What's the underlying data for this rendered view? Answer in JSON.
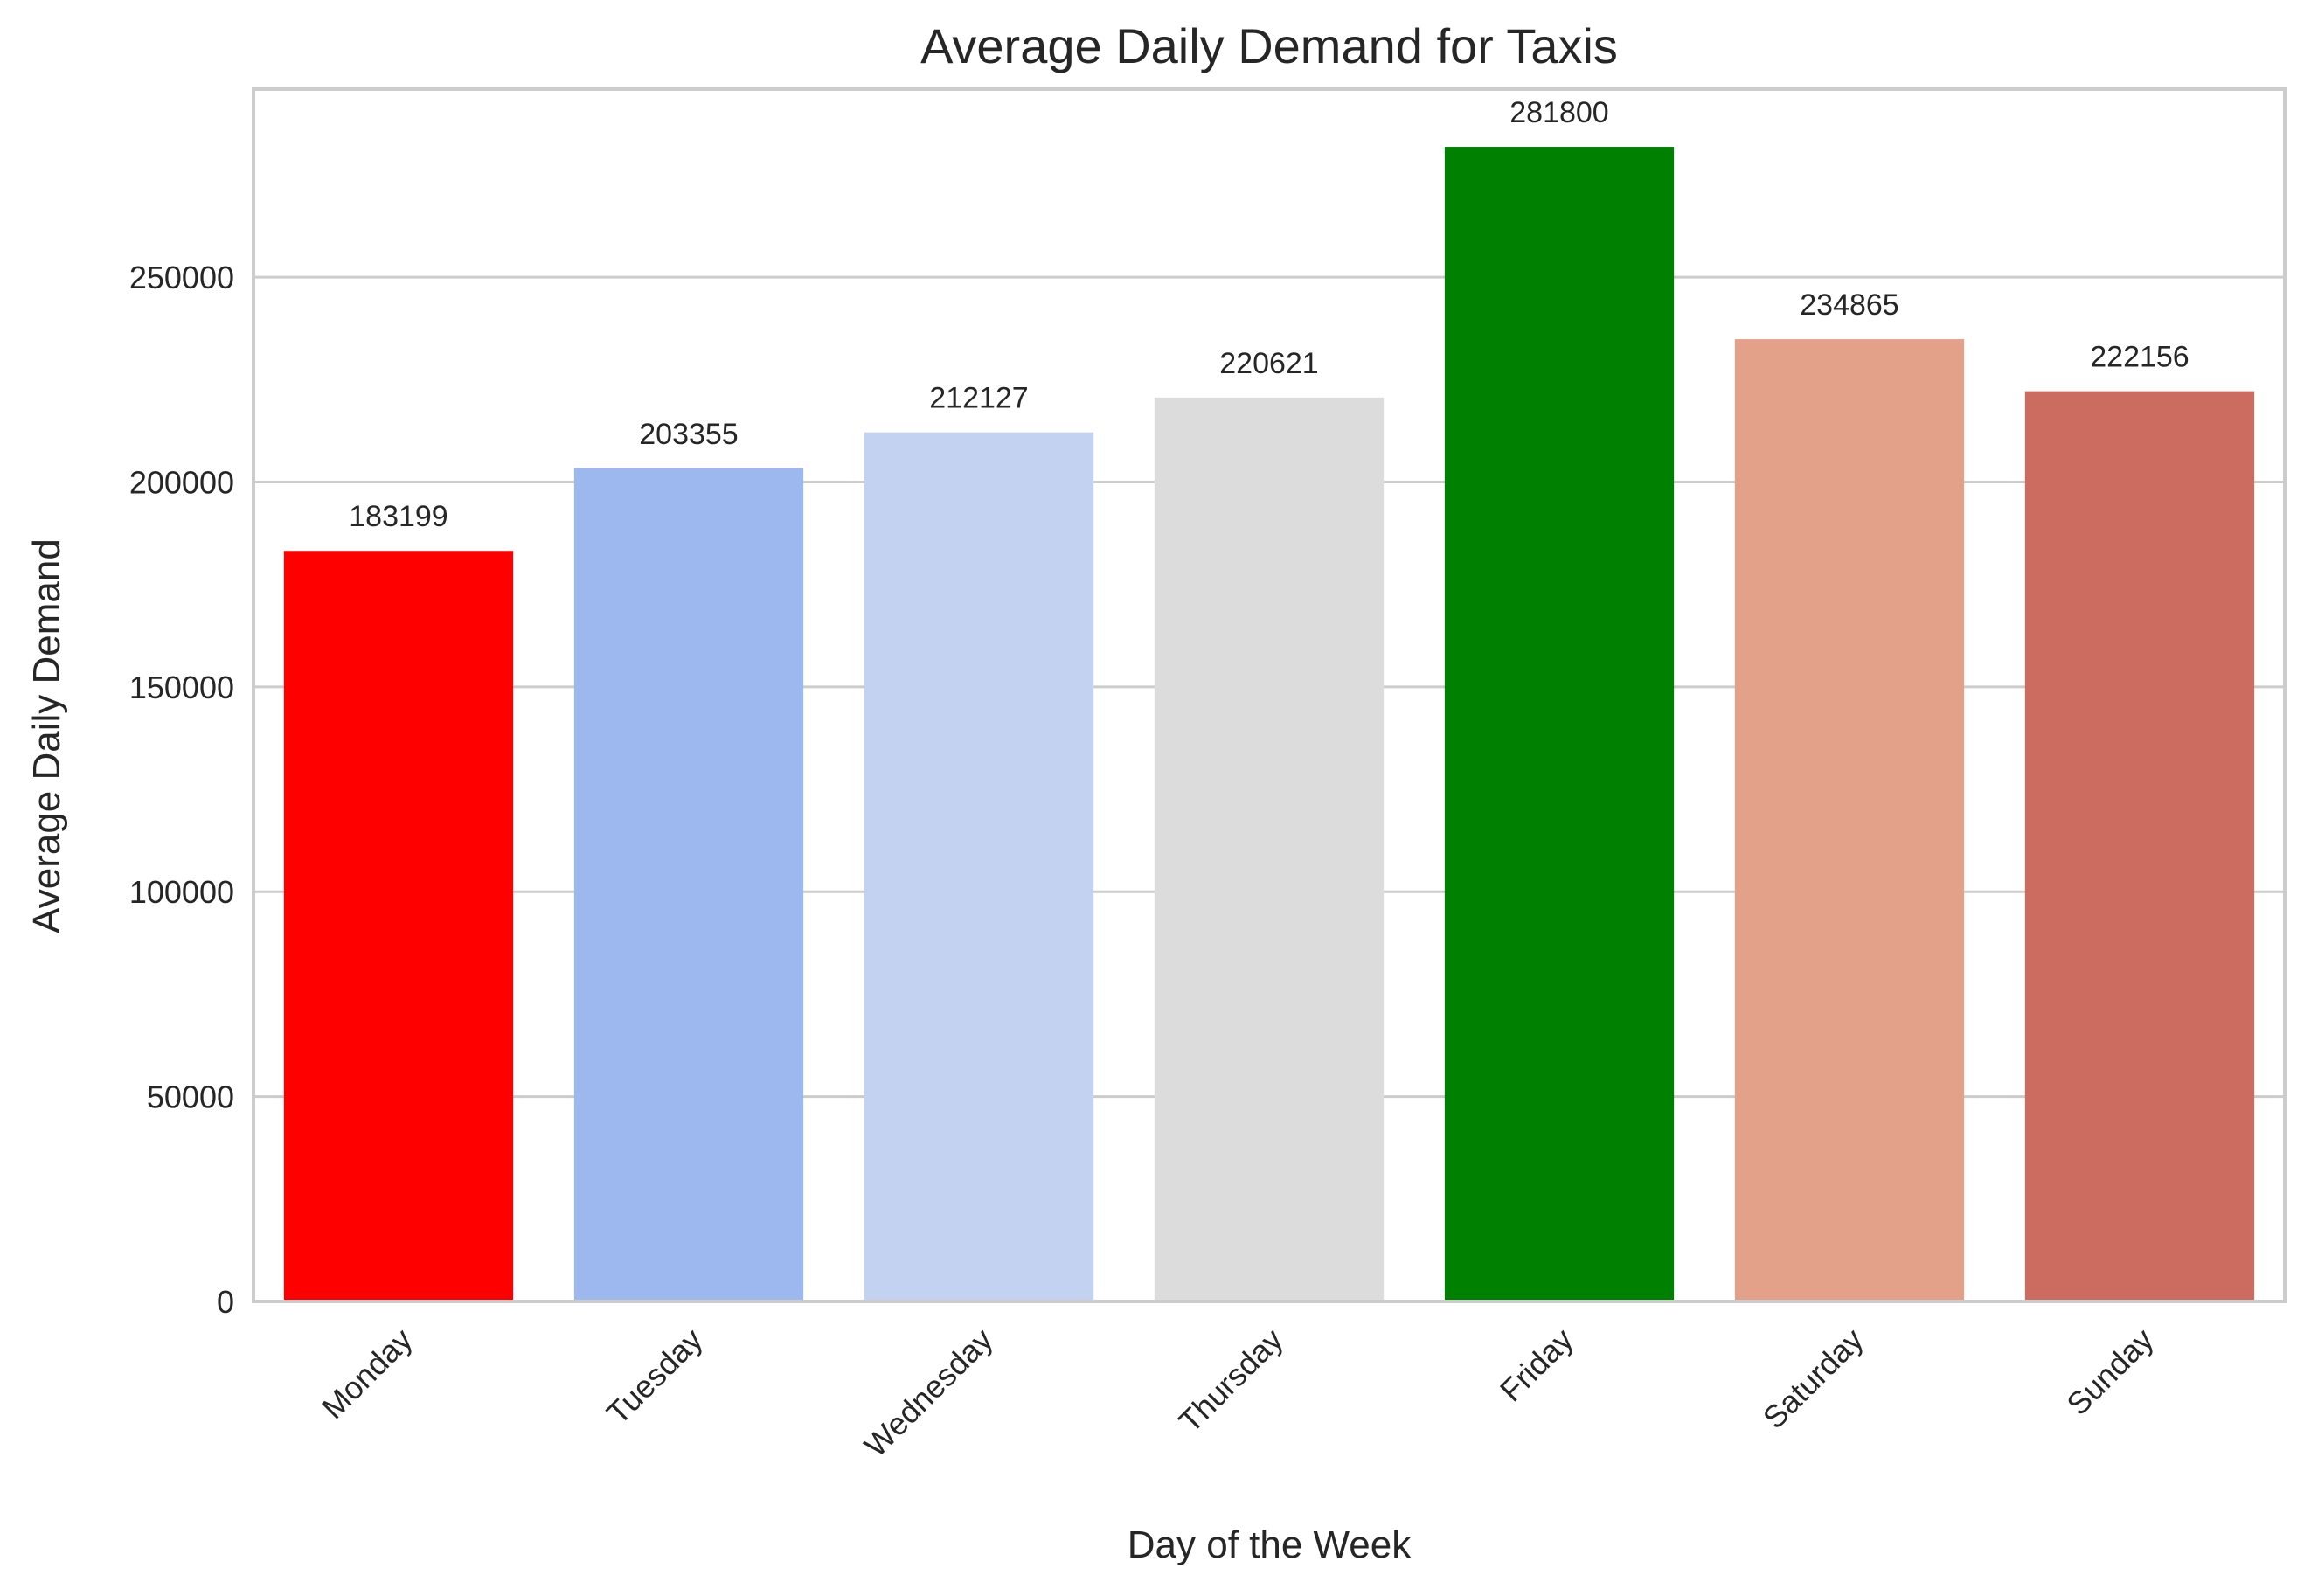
{
  "chart_data": {
    "type": "bar",
    "title": "Average Daily Demand for Taxis",
    "xlabel": "Day of the Week",
    "ylabel": "Average Daily Demand",
    "categories": [
      "Monday",
      "Tuesday",
      "Wednesday",
      "Thursday",
      "Friday",
      "Saturday",
      "Sunday"
    ],
    "values": [
      183199,
      203355,
      212127,
      220621,
      281800,
      234865,
      222156
    ],
    "data_labels": [
      "183199",
      "203355",
      "212127",
      "220621",
      "281800",
      "234865",
      "222156"
    ],
    "colors": [
      "#ff0000",
      "#9db7ef",
      "#c2d2f0",
      "#dcdcdc",
      "#008000",
      "#e4a189",
      "#cc6c61"
    ],
    "yticks": [
      0,
      50000,
      100000,
      150000,
      200000,
      250000
    ],
    "ytick_labels": [
      "0",
      "50000",
      "100000",
      "150000",
      "200000",
      "250000"
    ],
    "ylim": [
      0,
      295890
    ],
    "grid": "horizontal",
    "legend": "none"
  }
}
